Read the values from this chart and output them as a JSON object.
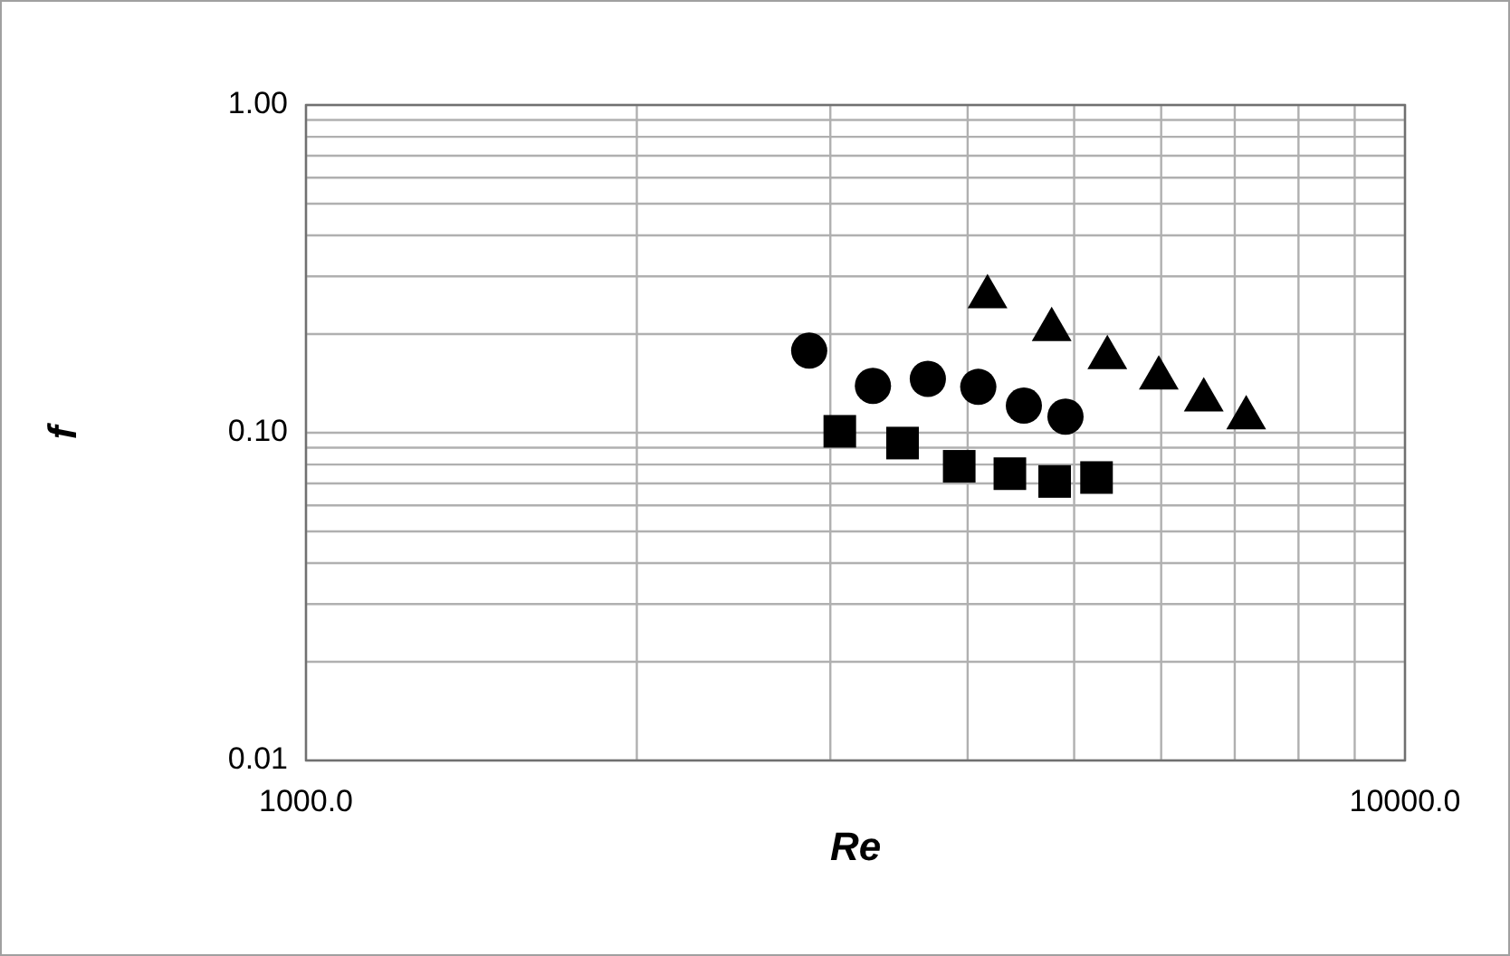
{
  "chart_data": {
    "type": "scatter",
    "xlabel": "Re",
    "ylabel": "f",
    "log": "xy",
    "grid": true,
    "xlim": [
      1000,
      10000
    ],
    "ylim": [
      0.01,
      1
    ],
    "xticks": [
      {
        "value": 1000,
        "label": "1000.0"
      },
      {
        "value": 2000,
        "label": null
      },
      {
        "value": 3000,
        "label": null
      },
      {
        "value": 4000,
        "label": null
      },
      {
        "value": 5000,
        "label": null
      },
      {
        "value": 6000,
        "label": null
      },
      {
        "value": 7000,
        "label": null
      },
      {
        "value": 8000,
        "label": null
      },
      {
        "value": 9000,
        "label": null
      },
      {
        "value": 10000,
        "label": "10000.0"
      }
    ],
    "yticks": [
      {
        "value": 0.01,
        "label": "0.01"
      },
      {
        "value": 0.02,
        "label": null
      },
      {
        "value": 0.03,
        "label": null
      },
      {
        "value": 0.04,
        "label": null
      },
      {
        "value": 0.05,
        "label": null
      },
      {
        "value": 0.06,
        "label": null
      },
      {
        "value": 0.07,
        "label": null
      },
      {
        "value": 0.08,
        "label": null
      },
      {
        "value": 0.09,
        "label": null
      },
      {
        "value": 0.1,
        "label": "0.10"
      },
      {
        "value": 0.2,
        "label": null
      },
      {
        "value": 0.3,
        "label": null
      },
      {
        "value": 0.4,
        "label": null
      },
      {
        "value": 0.5,
        "label": null
      },
      {
        "value": 0.6,
        "label": null
      },
      {
        "value": 0.7,
        "label": null
      },
      {
        "value": 0.8,
        "label": null
      },
      {
        "value": 0.9,
        "label": null
      },
      {
        "value": 1,
        "label": "1.00"
      }
    ],
    "series": [
      {
        "color": "#000000",
        "marker": "circle",
        "x": [
          2870,
          3280,
          3680,
          4090,
          4500,
          4910
        ],
        "values": [
          0.178,
          0.139,
          0.146,
          0.138,
          0.121,
          0.112
        ]
      },
      {
        "color": "#000000",
        "marker": "square",
        "x": [
          3060,
          3490,
          3930,
          4370,
          4800,
          5240
        ],
        "values": [
          0.101,
          0.093,
          0.079,
          0.075,
          0.071,
          0.073
        ]
      },
      {
        "color": "#000000",
        "marker": "triangle",
        "x": [
          4170,
          4770,
          5360,
          5970,
          6560,
          7170
        ],
        "values": [
          0.262,
          0.208,
          0.171,
          0.148,
          0.127,
          0.112
        ]
      }
    ]
  }
}
